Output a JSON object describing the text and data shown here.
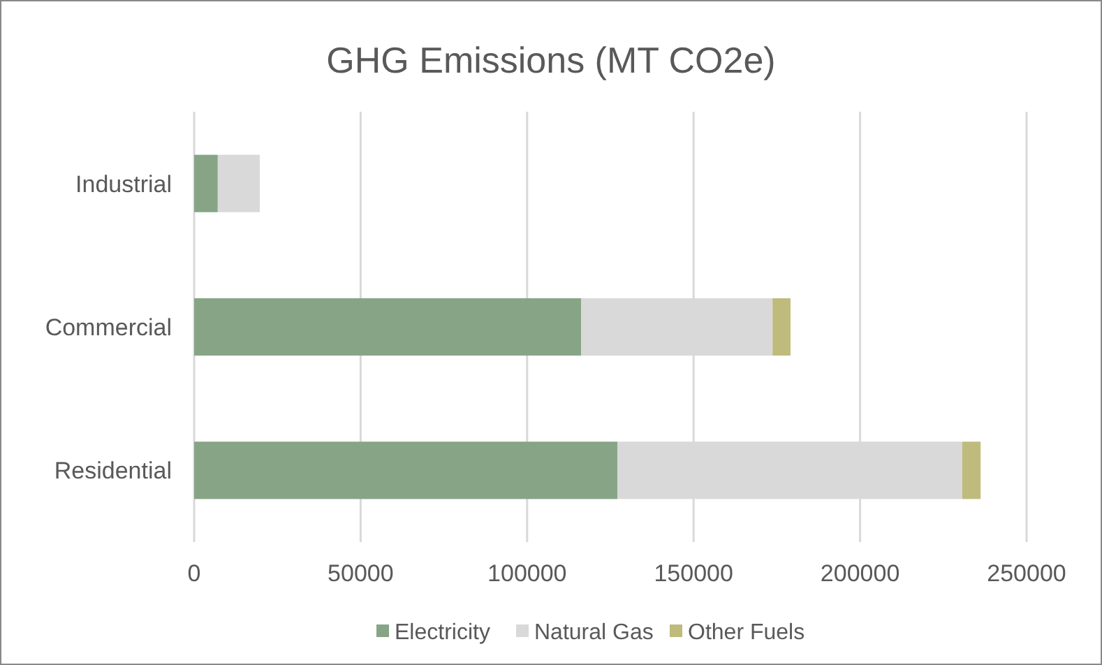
{
  "chart_data": {
    "type": "bar",
    "title": "GHG Emissions (MT CO2e)",
    "orientation": "horizontal",
    "stacked": true,
    "categories": [
      "Industrial",
      "Commercial",
      "Residential"
    ],
    "series": [
      {
        "name": "Electricity",
        "color": "#87a586",
        "values": [
          7100,
          116200,
          127100
        ]
      },
      {
        "name": "Natural Gas",
        "color": "#d9d9d9",
        "values": [
          12600,
          57500,
          103600
        ]
      },
      {
        "name": "Other Fuels",
        "color": "#bfbb7d",
        "values": [
          null,
          5400,
          5500
        ]
      }
    ],
    "xlim": [
      0,
      250000
    ],
    "xticks": [
      0,
      50000,
      100000,
      150000,
      200000,
      250000
    ],
    "grid": "x",
    "legend": "bottom"
  }
}
